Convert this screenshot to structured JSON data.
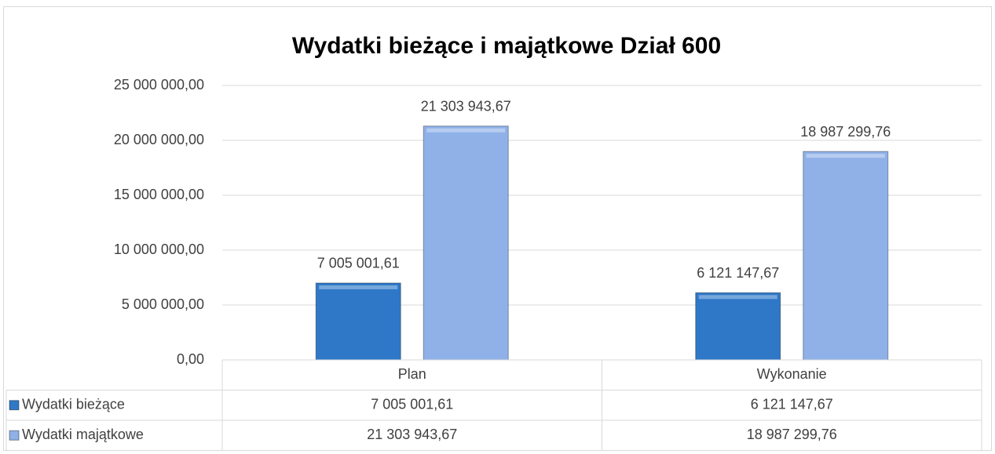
{
  "chart_data": {
    "type": "bar",
    "title": "Wydatki bieżące i majątkowe Dział 600",
    "categories": [
      "Plan",
      "Wykonanie"
    ],
    "series": [
      {
        "name": "Wydatki bieżące",
        "color": "#2f78c8",
        "values": [
          7005001.61,
          6121147.67
        ],
        "value_labels": [
          "7 005 001,61",
          "6 121 147,67"
        ]
      },
      {
        "name": "Wydatki majątkowe",
        "color": "#8fb1e8",
        "values": [
          21303943.67,
          18987299.76
        ],
        "value_labels": [
          "21 303 943,67",
          "18 987 299,76"
        ]
      }
    ],
    "ylim": [
      0,
      25000000
    ],
    "yticks": [
      {
        "value": 0,
        "label": "0,00"
      },
      {
        "value": 5000000,
        "label": "5 000 000,00"
      },
      {
        "value": 10000000,
        "label": "10 000 000,00"
      },
      {
        "value": 15000000,
        "label": "15 000 000,00"
      },
      {
        "value": 20000000,
        "label": "20 000 000,00"
      },
      {
        "value": 25000000,
        "label": "25 000 000,00"
      }
    ],
    "grid": true,
    "data_table": true
  }
}
